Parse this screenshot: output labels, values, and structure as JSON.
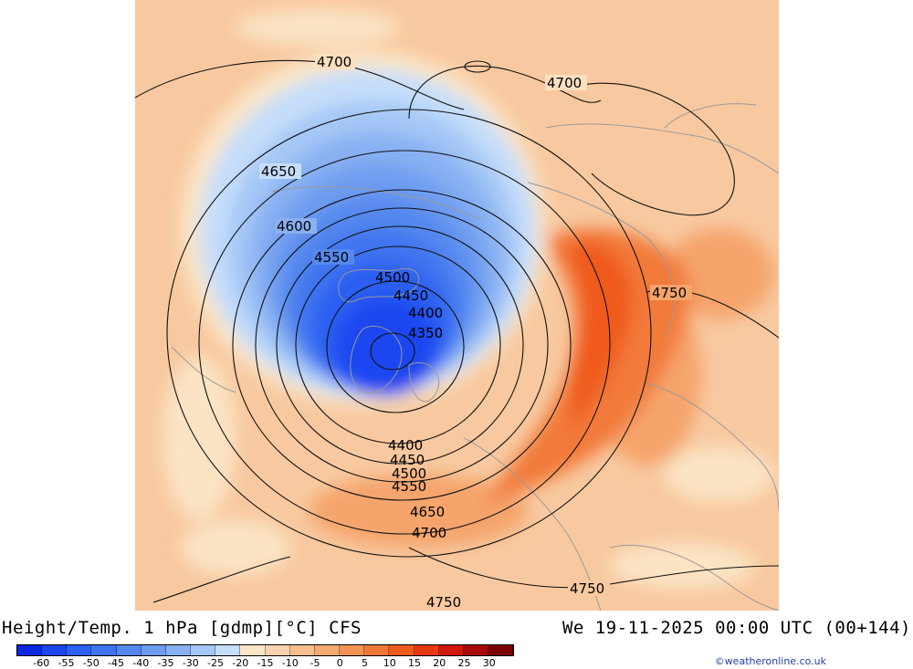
{
  "title": "Height/Temp. 1 hPa [gdmp][°C] CFS",
  "valid_time": "We 19-11-2025 00:00 UTC (00+144)",
  "credit": "©weatheronline.co.uk",
  "colorbar": {
    "ticks": [
      "-60",
      "-55",
      "-50",
      "-45",
      "-40",
      "-35",
      "-30",
      "-25",
      "-20",
      "-15",
      "-10",
      "-5",
      "0",
      "5",
      "10",
      "15",
      "20",
      "25",
      "30"
    ],
    "colors": [
      "#0a28e0",
      "#1a46f0",
      "#2c5ff2",
      "#3f74f0",
      "#5588ee",
      "#6e9cf0",
      "#88b0f2",
      "#a5c8f6",
      "#c6defa",
      "#fbe7c8",
      "#f9d3ad",
      "#f7bf8f",
      "#f5aa72",
      "#f39353",
      "#f27935",
      "#f05a1a",
      "#e83a12",
      "#d0180c",
      "#a80808",
      "#7a0202"
    ]
  },
  "contour_labels": [
    "4700",
    "4700",
    "4650",
    "4600",
    "4550",
    "4500",
    "4450",
    "4400",
    "4350",
    "4750",
    "4400",
    "4450",
    "4500",
    "4550",
    "4650",
    "4700",
    "4750",
    "4750"
  ]
}
